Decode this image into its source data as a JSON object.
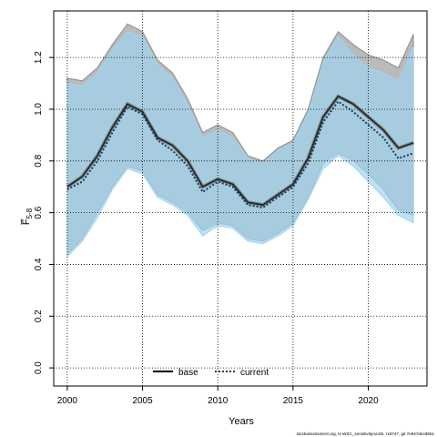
{
  "chart_data": {
    "type": "line",
    "xlabel": "Years",
    "ylabel": "F̅",
    "ylabel_sub": "5-8",
    "xlim": [
      1999.1,
      2023.9
    ],
    "ylim": [
      -0.07,
      1.38
    ],
    "xticks": [
      2000,
      2005,
      2010,
      2015,
      2020
    ],
    "yticks": [
      0.0,
      0.2,
      0.4,
      0.6,
      0.8,
      1.0,
      1.2
    ],
    "ytick_labels": [
      "0.0",
      "0.2",
      "0.4",
      "0.6",
      "0.8",
      "1.0",
      "1.2"
    ],
    "grid": true,
    "legend_position": "bottom",
    "x": [
      2000,
      2001,
      2002,
      2003,
      2004,
      2005,
      2006,
      2007,
      2008,
      2009,
      2010,
      2011,
      2012,
      2013,
      2014,
      2015,
      2016,
      2017,
      2018,
      2019,
      2020,
      2021,
      2022,
      2023
    ],
    "series": [
      {
        "name": "base",
        "style": "solid",
        "color": "#222222",
        "band_color": "#8c8c8c",
        "values": [
          0.7,
          0.74,
          0.82,
          0.93,
          1.02,
          0.99,
          0.89,
          0.86,
          0.8,
          0.7,
          0.73,
          0.71,
          0.64,
          0.63,
          0.67,
          0.71,
          0.81,
          0.97,
          1.05,
          1.02,
          0.97,
          0.92,
          0.85,
          0.87
        ],
        "lower": [
          0.44,
          0.5,
          0.6,
          0.7,
          0.78,
          0.76,
          0.67,
          0.64,
          0.6,
          0.53,
          0.56,
          0.55,
          0.5,
          0.49,
          0.52,
          0.56,
          0.66,
          0.79,
          0.83,
          0.8,
          0.75,
          0.69,
          0.61,
          0.59
        ],
        "upper": [
          1.12,
          1.11,
          1.16,
          1.25,
          1.33,
          1.3,
          1.19,
          1.14,
          1.04,
          0.91,
          0.94,
          0.91,
          0.82,
          0.8,
          0.85,
          0.88,
          1.0,
          1.2,
          1.3,
          1.25,
          1.21,
          1.19,
          1.16,
          1.29
        ]
      },
      {
        "name": "current",
        "style": "dotted",
        "color": "#1a3a5c",
        "band_color": "#9fd4ef",
        "values": [
          0.69,
          0.72,
          0.8,
          0.91,
          1.01,
          0.98,
          0.88,
          0.84,
          0.78,
          0.68,
          0.72,
          0.7,
          0.63,
          0.62,
          0.66,
          0.7,
          0.79,
          0.95,
          1.03,
          0.99,
          0.94,
          0.89,
          0.81,
          0.83
        ],
        "lower": [
          0.43,
          0.49,
          0.58,
          0.69,
          0.77,
          0.75,
          0.66,
          0.63,
          0.59,
          0.51,
          0.55,
          0.54,
          0.49,
          0.48,
          0.51,
          0.55,
          0.65,
          0.77,
          0.82,
          0.78,
          0.72,
          0.66,
          0.59,
          0.56
        ],
        "upper": [
          1.1,
          1.09,
          1.14,
          1.23,
          1.3,
          1.28,
          1.17,
          1.12,
          1.02,
          0.89,
          0.92,
          0.89,
          0.81,
          0.79,
          0.84,
          0.87,
          0.98,
          1.18,
          1.28,
          1.21,
          1.16,
          1.14,
          1.11,
          1.24
        ]
      }
    ],
    "legend": [
      {
        "label": "base",
        "style": "solid"
      },
      {
        "label": "current",
        "style": "dotted"
      }
    ]
  },
  "footer": "stockassessment.org, N-WSC_sensitivityrun25, r18747, git 7e947dec8551"
}
